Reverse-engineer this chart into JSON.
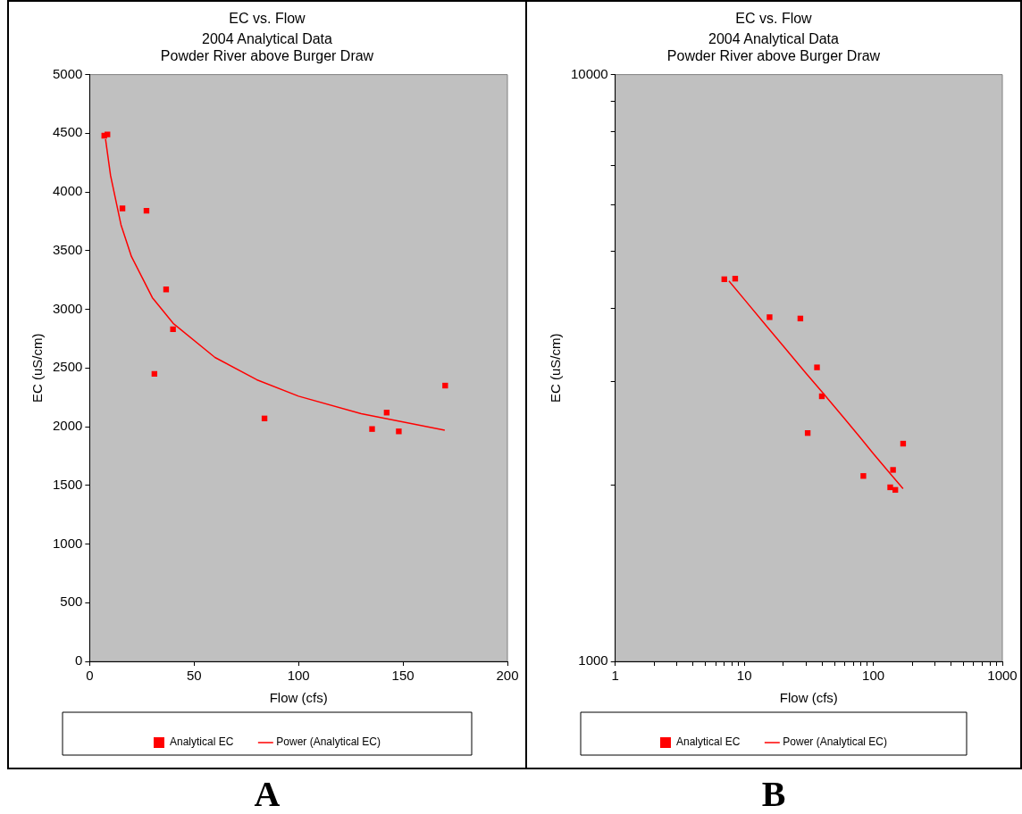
{
  "chart_data": [
    {
      "type": "scatter",
      "title": "EC vs. Flow",
      "subtitle": "2004 Analytical Data\nPowder River above Burger Draw",
      "xlabel": "Flow (cfs)",
      "ylabel": "EC (uS/cm)",
      "xlim": [
        0,
        200
      ],
      "xticks": [
        0,
        50,
        100,
        150,
        200
      ],
      "ylim": [
        0,
        5000
      ],
      "yticks": [
        0,
        500,
        1000,
        1500,
        2000,
        2500,
        3000,
        3500,
        4000,
        4500,
        5000
      ],
      "legend": "bottom",
      "annotations": [
        "A"
      ],
      "series": [
        {
          "name": "Analytical EC",
          "type": "scatter",
          "color": "#ff0000",
          "marker": "square",
          "x": [
            7,
            8.5,
            15.7,
            27.2,
            36.6,
            39.9,
            31,
            83.7,
            135.2,
            142.2,
            148,
            170.2
          ],
          "values": [
            4480,
            4490,
            3860,
            3840,
            3170,
            2830,
            2450,
            2070,
            1980,
            2120,
            1960,
            2350
          ]
        },
        {
          "name": "Power (Analytical EC)",
          "type": "line",
          "color": "#ff0000",
          "marker": "none",
          "line_style": "solid",
          "x": [
            7.6,
            10,
            15,
            20,
            30,
            40,
            60,
            80,
            100,
            130,
            170
          ],
          "values": [
            4450,
            4140,
            3720,
            3450,
            3100,
            2880,
            2590,
            2400,
            2260,
            2110,
            1970
          ]
        }
      ]
    },
    {
      "type": "scatter",
      "title": "EC vs. Flow",
      "subtitle": "2004 Analytical Data\nPowder River above Burger Draw",
      "xlabel": "Flow (cfs)",
      "ylabel": "EC (uS/cm)",
      "log": "xy",
      "xlim": [
        1,
        1000
      ],
      "xticks": [
        1,
        {
          "value": 2,
          "label": null
        },
        {
          "value": 3,
          "label": null
        },
        {
          "value": 4,
          "label": null
        },
        {
          "value": 5,
          "label": null
        },
        {
          "value": 6,
          "label": null
        },
        {
          "value": 7,
          "label": null
        },
        {
          "value": 8,
          "label": null
        },
        {
          "value": 9,
          "label": null
        },
        10,
        {
          "value": 20,
          "label": null
        },
        {
          "value": 30,
          "label": null
        },
        {
          "value": 40,
          "label": null
        },
        {
          "value": 50,
          "label": null
        },
        {
          "value": 60,
          "label": null
        },
        {
          "value": 70,
          "label": null
        },
        {
          "value": 80,
          "label": null
        },
        {
          "value": 90,
          "label": null
        },
        100,
        {
          "value": 200,
          "label": null
        },
        {
          "value": 300,
          "label": null
        },
        {
          "value": 400,
          "label": null
        },
        {
          "value": 500,
          "label": null
        },
        {
          "value": 600,
          "label": null
        },
        {
          "value": 700,
          "label": null
        },
        {
          "value": 800,
          "label": null
        },
        {
          "value": 900,
          "label": null
        },
        1000
      ],
      "ylim": [
        1000,
        10000
      ],
      "yticks": [
        1000,
        {
          "value": 2000,
          "label": null
        },
        {
          "value": 3000,
          "label": null
        },
        {
          "value": 4000,
          "label": null
        },
        {
          "value": 5000,
          "label": null
        },
        {
          "value": 6000,
          "label": null
        },
        {
          "value": 7000,
          "label": null
        },
        {
          "value": 8000,
          "label": null
        },
        {
          "value": 9000,
          "label": null
        },
        10000
      ],
      "legend": "bottom",
      "annotations": [
        "B"
      ],
      "series": [
        {
          "name": "Analytical EC",
          "type": "scatter",
          "color": "#ff0000",
          "marker": "square",
          "x": [
            7,
            8.5,
            15.7,
            27.2,
            36.6,
            39.9,
            31,
            83.7,
            135.2,
            142.2,
            148,
            170.2
          ],
          "values": [
            4480,
            4490,
            3860,
            3840,
            3170,
            2830,
            2450,
            2070,
            1980,
            2120,
            1960,
            2350
          ]
        },
        {
          "name": "Power (Analytical EC)",
          "type": "line",
          "color": "#ff0000",
          "marker": "none",
          "line_style": "solid",
          "x": [
            7.6,
            10,
            15,
            20,
            30,
            40,
            60,
            80,
            100,
            130,
            170
          ],
          "values": [
            4450,
            4140,
            3720,
            3450,
            3100,
            2880,
            2590,
            2400,
            2260,
            2110,
            1970
          ]
        }
      ]
    }
  ]
}
